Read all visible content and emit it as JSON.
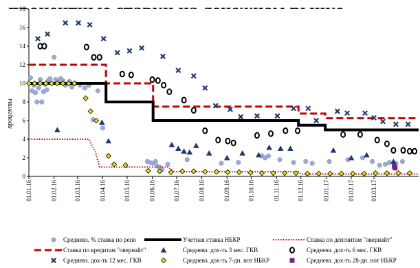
{
  "chart_data": {
    "type": "line",
    "title": "процентные ставки на денежном рынке",
    "ylabel": "проценты",
    "ylim": [
      0,
      18
    ],
    "yticks": [
      0,
      2,
      4,
      6,
      8,
      10,
      12,
      14,
      16,
      18
    ],
    "xlim": [
      "2016-01-01",
      "2017-04-25"
    ],
    "xticks": [
      "01.01.16",
      "01.02.16",
      "01.03.16",
      "01.04.16",
      "01.05.16",
      "01.06.16",
      "01.07.16",
      "01.08.16",
      "01.09.16",
      "01.10.16",
      "01.11.16",
      "01.12.16",
      "01.01.17",
      "01.02.17",
      "01.03.17"
    ],
    "legend_position": "bottom",
    "series": [
      {
        "name": "Средневз. % ставка по репо",
        "kind": "marker",
        "marker": "circle-filled",
        "color": "#9aa9d6",
        "points": [
          [
            "2016-01-03",
            10.6
          ],
          [
            "2016-01-05",
            9.2
          ],
          [
            "2016-01-07",
            9.8
          ],
          [
            "2016-01-09",
            9.0
          ],
          [
            "2016-01-11",
            8.0
          ],
          [
            "2016-01-13",
            9.5
          ],
          [
            "2016-01-15",
            10.4
          ],
          [
            "2016-01-17",
            8.0
          ],
          [
            "2016-01-19",
            9.1
          ],
          [
            "2016-01-21",
            9.9
          ],
          [
            "2016-01-23",
            9.3
          ],
          [
            "2016-01-25",
            10.3
          ],
          [
            "2016-01-27",
            10.5
          ],
          [
            "2016-02-01",
            12.8
          ],
          [
            "2016-02-03",
            10.4
          ],
          [
            "2016-02-06",
            10.1
          ],
          [
            "2016-02-09",
            10.5
          ],
          [
            "2016-02-12",
            10.3
          ],
          [
            "2016-02-15",
            9.8
          ],
          [
            "2016-02-20",
            10.2
          ],
          [
            "2016-02-23",
            9.6
          ],
          [
            "2016-02-27",
            10.0
          ],
          [
            "2016-03-04",
            9.8
          ],
          [
            "2016-03-10",
            9.5
          ],
          [
            "2016-03-15",
            9.8
          ],
          [
            "2016-03-20",
            6.1
          ],
          [
            "2016-03-26",
            9.2
          ],
          [
            "2016-04-01",
            5.2
          ],
          [
            "2016-05-26",
            1.6
          ],
          [
            "2016-05-29",
            1.5
          ],
          [
            "2016-06-02",
            1.4
          ],
          [
            "2016-06-05",
            1.6
          ],
          [
            "2016-06-07",
            1.1
          ],
          [
            "2016-06-10",
            1.0
          ],
          [
            "2016-06-13",
            0.7
          ],
          [
            "2016-06-20",
            1.3
          ],
          [
            "2016-07-14",
            1.8
          ],
          [
            "2016-08-25",
            1.4
          ],
          [
            "2016-09-15",
            1.5
          ],
          [
            "2016-10-14",
            2.2
          ],
          [
            "2016-10-18",
            2.0
          ],
          [
            "2016-10-22",
            2.2
          ],
          [
            "2016-11-05",
            1.8
          ],
          [
            "2016-11-22",
            1.5
          ],
          [
            "2016-12-07",
            1.6
          ],
          [
            "2016-12-15",
            1.4
          ],
          [
            "2017-01-05",
            1.6
          ],
          [
            "2017-01-28",
            1.8
          ],
          [
            "2017-02-15",
            2.0
          ],
          [
            "2017-02-27",
            1.6
          ],
          [
            "2017-03-08",
            1.2
          ],
          [
            "2017-03-15",
            1.3
          ],
          [
            "2017-03-20",
            1.5
          ],
          [
            "2017-03-28",
            1.4
          ],
          [
            "2017-04-05",
            1.6
          ]
        ]
      },
      {
        "name": "Учетная ставка НБКР",
        "kind": "line",
        "color": "#000000",
        "dash": "solid",
        "width": 4,
        "points": [
          [
            "2016-01-01",
            10
          ],
          [
            "2016-04-05",
            10
          ],
          [
            "2016-04-05",
            8
          ],
          [
            "2016-06-02",
            8
          ],
          [
            "2016-06-02",
            6
          ],
          [
            "2016-11-28",
            6
          ],
          [
            "2016-11-28",
            5.5
          ],
          [
            "2016-12-31",
            5.5
          ],
          [
            "2016-12-31",
            5
          ],
          [
            "2017-04-25",
            5
          ]
        ]
      },
      {
        "name": "Ставка по депозитам \"овернайт\"",
        "kind": "line",
        "color": "#cc0000",
        "dash": "dotted",
        "width": 2,
        "points": [
          [
            "2016-01-01",
            4
          ],
          [
            "2016-03-15",
            4
          ],
          [
            "2016-03-23",
            2.6
          ],
          [
            "2016-03-28",
            1.0
          ],
          [
            "2016-06-20",
            1.0
          ],
          [
            "2016-06-28",
            0.5
          ],
          [
            "2016-11-28",
            0.5
          ],
          [
            "2016-12-01",
            0.25
          ],
          [
            "2017-04-25",
            0.25
          ]
        ]
      },
      {
        "name": "Ставка по кредитам \"овернайт\"",
        "kind": "line",
        "color": "#cc0000",
        "dash": "dashed",
        "width": 3,
        "points": [
          [
            "2016-01-01",
            12
          ],
          [
            "2016-04-05",
            12
          ],
          [
            "2016-04-05",
            10
          ],
          [
            "2016-06-02",
            10
          ],
          [
            "2016-06-02",
            7.5
          ],
          [
            "2016-11-28",
            7.5
          ],
          [
            "2016-11-28",
            6.75
          ],
          [
            "2016-12-31",
            6.75
          ],
          [
            "2016-12-31",
            6.25
          ],
          [
            "2017-04-25",
            6.25
          ]
        ]
      },
      {
        "name": "Средневз. дох-ть 3 мес. ГКВ",
        "kind": "marker",
        "marker": "triangle",
        "color": "#1f3a6e",
        "points": [
          [
            "2016-02-05",
            5.0
          ],
          [
            "2016-03-31",
            5.8
          ],
          [
            "2016-04-08",
            3.8
          ],
          [
            "2016-06-25",
            3.4
          ],
          [
            "2016-07-03",
            3.0
          ],
          [
            "2016-07-10",
            2.7
          ],
          [
            "2016-07-17",
            2.6
          ],
          [
            "2016-07-25",
            3.3
          ],
          [
            "2016-08-10",
            2.5
          ],
          [
            "2016-09-01",
            2.0
          ],
          [
            "2016-09-20",
            2.5
          ],
          [
            "2016-10-10",
            2.3
          ],
          [
            "2016-10-23",
            3.1
          ],
          [
            "2016-11-06",
            3.0
          ],
          [
            "2016-11-18",
            3.0
          ],
          [
            "2017-01-10",
            2.8
          ],
          [
            "2017-02-01",
            2.0
          ],
          [
            "2017-02-20",
            2.3
          ],
          [
            "2017-03-25",
            1.6
          ]
        ]
      },
      {
        "name": "Средневз. дох-ть 6 мес. ГКВ",
        "kind": "marker",
        "marker": "ring",
        "color": "#000000",
        "points": [
          [
            "2016-01-15",
            14.0
          ],
          [
            "2016-01-20",
            14.0
          ],
          [
            "2016-03-12",
            13.9
          ],
          [
            "2016-03-21",
            12.8
          ],
          [
            "2016-03-28",
            12.8
          ],
          [
            "2016-04-25",
            11.0
          ],
          [
            "2016-05-06",
            10.9
          ],
          [
            "2016-06-01",
            10.4
          ],
          [
            "2016-06-08",
            10.3
          ],
          [
            "2016-06-15",
            9.8
          ],
          [
            "2016-06-22",
            9.1
          ],
          [
            "2016-07-10",
            8.2
          ],
          [
            "2016-07-22",
            7.1
          ],
          [
            "2016-08-05",
            4.9
          ],
          [
            "2016-08-21",
            3.9
          ],
          [
            "2016-09-02",
            3.8
          ],
          [
            "2016-09-09",
            3.6
          ],
          [
            "2016-10-08",
            4.4
          ],
          [
            "2016-10-25",
            4.6
          ],
          [
            "2016-11-12",
            4.9
          ],
          [
            "2016-11-27",
            4.9
          ],
          [
            "2017-01-22",
            4.5
          ],
          [
            "2017-02-12",
            4.5
          ],
          [
            "2017-03-05",
            3.9
          ],
          [
            "2017-03-17",
            3.5
          ],
          [
            "2017-03-25",
            2.8
          ],
          [
            "2017-04-06",
            2.8
          ],
          [
            "2017-04-14",
            2.7
          ],
          [
            "2017-04-20",
            2.7
          ]
        ]
      },
      {
        "name": "Средневз. дох-ть 12 мес. ГКВ",
        "kind": "marker",
        "marker": "x",
        "color": "#1f3a6e",
        "points": [
          [
            "2016-01-12",
            14.8
          ],
          [
            "2016-01-24",
            15.3
          ],
          [
            "2016-02-15",
            16.5
          ],
          [
            "2016-03-02",
            16.5
          ],
          [
            "2016-03-16",
            16.3
          ],
          [
            "2016-04-02",
            14.8
          ],
          [
            "2016-04-19",
            13.3
          ],
          [
            "2016-05-04",
            13.5
          ],
          [
            "2016-05-19",
            13.8
          ],
          [
            "2016-06-14",
            12.9
          ],
          [
            "2016-07-03",
            11.4
          ],
          [
            "2016-07-22",
            10.8
          ],
          [
            "2016-08-05",
            9.5
          ],
          [
            "2016-08-18",
            7.6
          ],
          [
            "2016-09-05",
            7.2
          ],
          [
            "2016-09-18",
            6.4
          ],
          [
            "2016-10-08",
            6.5
          ],
          [
            "2016-11-02",
            6.5
          ],
          [
            "2016-11-22",
            7.3
          ],
          [
            "2016-12-10",
            7.3
          ],
          [
            "2016-12-20",
            6.0
          ],
          [
            "2017-01-15",
            7.0
          ],
          [
            "2017-01-27",
            6.8
          ],
          [
            "2017-02-18",
            6.8
          ],
          [
            "2017-03-01",
            6.3
          ],
          [
            "2017-03-12",
            5.9
          ],
          [
            "2017-03-28",
            5.6
          ],
          [
            "2017-04-12",
            5.6
          ]
        ]
      },
      {
        "name": "Средневз. дох-ть 7-дн. нот НБКР",
        "kind": "marker",
        "marker": "diamond",
        "color": "#e8e000",
        "points": [
          [
            "2016-01-01",
            10.0
          ],
          [
            "2016-01-08",
            10.0
          ],
          [
            "2016-01-15",
            10.0
          ],
          [
            "2016-01-22",
            10.0
          ],
          [
            "2016-01-29",
            10.0
          ],
          [
            "2016-02-05",
            10.0
          ],
          [
            "2016-02-12",
            10.0
          ],
          [
            "2016-02-19",
            10.0
          ],
          [
            "2016-02-26",
            10.0
          ],
          [
            "2016-03-11",
            8.4
          ],
          [
            "2016-03-17",
            7.0
          ],
          [
            "2016-03-24",
            6.0
          ],
          [
            "2016-04-08",
            2.2
          ],
          [
            "2016-04-15",
            1.3
          ],
          [
            "2016-04-29",
            1.2
          ],
          [
            "2016-05-27",
            0.6
          ],
          [
            "2016-06-10",
            0.55
          ],
          [
            "2016-06-24",
            0.45
          ],
          [
            "2016-07-08",
            0.55
          ],
          [
            "2016-07-22",
            0.55
          ],
          [
            "2016-08-05",
            0.5
          ],
          [
            "2016-08-19",
            0.5
          ],
          [
            "2016-09-02",
            0.45
          ],
          [
            "2016-09-16",
            0.45
          ],
          [
            "2016-09-30",
            0.4
          ],
          [
            "2016-10-14",
            0.35
          ],
          [
            "2016-10-28",
            0.35
          ],
          [
            "2016-11-11",
            0.35
          ],
          [
            "2016-11-25",
            0.35
          ],
          [
            "2016-12-09",
            0.3
          ],
          [
            "2016-12-23",
            0.3
          ],
          [
            "2017-01-06",
            0.3
          ],
          [
            "2017-01-20",
            0.3
          ],
          [
            "2017-02-03",
            0.3
          ],
          [
            "2017-02-17",
            0.3
          ],
          [
            "2017-03-03",
            0.35
          ],
          [
            "2017-03-17",
            0.35
          ],
          [
            "2017-03-31",
            0.35
          ],
          [
            "2017-04-14",
            0.35
          ]
        ]
      },
      {
        "name": "Средневз. дох-ть 28-дн. нот НБКР",
        "kind": "marker",
        "marker": "square",
        "color": "#7a1f8c",
        "points": [
          [
            "2017-03-26",
            1.1
          ],
          [
            "2017-03-27",
            0.9
          ]
        ]
      }
    ]
  }
}
